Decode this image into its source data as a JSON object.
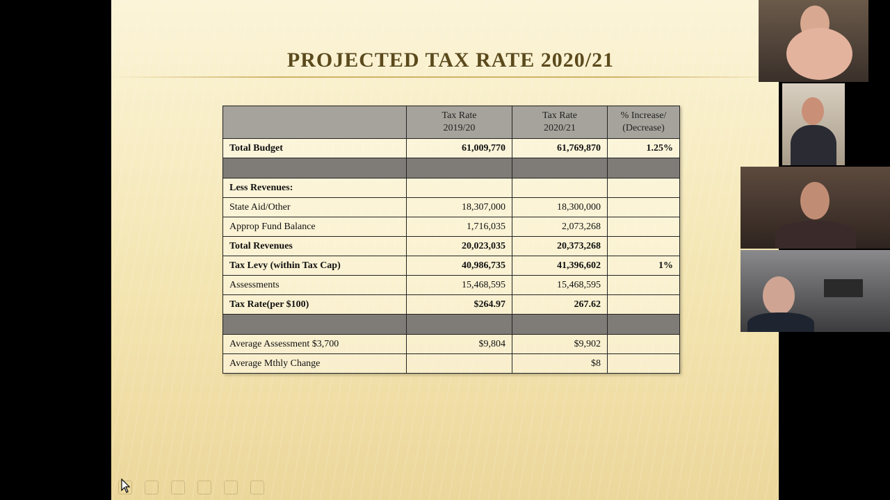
{
  "slide": {
    "title": "PROJECTED TAX RATE 2020/21",
    "headers": [
      "",
      "Tax Rate\n2019/20",
      "Tax Rate\n2020/21",
      "% Increase/\n(Decrease)"
    ],
    "rows": [
      {
        "label": "Total Budget",
        "v1": "61,009,770",
        "v2": "61,769,870",
        "v3": "1.25%"
      },
      {
        "label": "Less Revenues:",
        "v1": "",
        "v2": "",
        "v3": ""
      },
      {
        "label": "State Aid/Other",
        "v1": "18,307,000",
        "v2": "18,300,000",
        "v3": ""
      },
      {
        "label": "Approp Fund Balance",
        "v1": "1,716,035",
        "v2": "2,073,268",
        "v3": ""
      },
      {
        "label": "Total Revenues",
        "v1": "20,023,035",
        "v2": "20,373,268",
        "v3": ""
      },
      {
        "label": "Tax Levy (within Tax Cap)",
        "v1": "40,986,735",
        "v2": "41,396,602",
        "v3": "1%"
      },
      {
        "label": "Assessments",
        "v1": "15,468,595",
        "v2": "15,468,595",
        "v3": ""
      },
      {
        "label": "Tax Rate(per $100)",
        "v1": "$264.97",
        "v2": "267.62",
        "v3": ""
      },
      {
        "label": "Average Assessment $3,700",
        "v1": "$9,804",
        "v2": "$9,902",
        "v3": ""
      },
      {
        "label": "Average Mthly Change",
        "v1": "",
        "v2": "$8",
        "v3": ""
      }
    ]
  },
  "participants": [
    {
      "name": "participant-1-video"
    },
    {
      "name": "participant-2-video"
    },
    {
      "name": "participant-3-video"
    },
    {
      "name": "participant-4-video"
    }
  ],
  "colors": {
    "slide_bg": "#f4e6b3",
    "title": "#5b4a1c",
    "header_bg": "#a6a39c",
    "separator_bg": "#7f7c77"
  }
}
